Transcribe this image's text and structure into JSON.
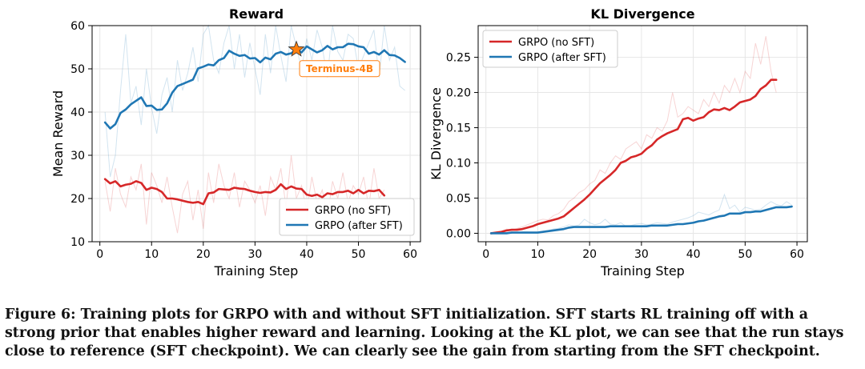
{
  "chart_data": [
    {
      "type": "line",
      "title": "Reward",
      "xlabel": "Training Step",
      "ylabel": "Mean Reward",
      "xlim": [
        -1.5,
        62
      ],
      "ylim": [
        10,
        60
      ],
      "xticks": [
        0,
        10,
        20,
        30,
        40,
        50,
        60
      ],
      "yticks": [
        10,
        20,
        30,
        40,
        50,
        60
      ],
      "grid": true,
      "legend_position": "lower-right",
      "colors": {
        "GRPO (no SFT)": "#d62728",
        "GRPO (after SFT)": "#1f77b4"
      },
      "series": [
        {
          "name": "GRPO (no SFT)",
          "x": [
            1,
            2,
            3,
            4,
            5,
            6,
            7,
            8,
            9,
            10,
            11,
            12,
            13,
            14,
            15,
            16,
            17,
            18,
            19,
            20,
            21,
            22,
            23,
            24,
            25,
            26,
            27,
            28,
            29,
            30,
            31,
            32,
            33,
            34,
            35,
            36,
            37,
            38,
            39,
            40,
            41,
            42,
            43,
            44,
            45,
            46,
            47,
            48,
            49,
            50,
            51,
            52,
            53,
            54,
            55
          ],
          "values": [
            24.5,
            23.5,
            24,
            22.8,
            23.2,
            23.4,
            24,
            23.6,
            22,
            22.5,
            22.2,
            21.5,
            20,
            20,
            19.8,
            19.5,
            19.2,
            19,
            19.2,
            18.7,
            21.2,
            21.4,
            22.2,
            22.1,
            22,
            22.5,
            22.3,
            22.2,
            21.8,
            21.5,
            21.3,
            21.5,
            21.4,
            22,
            23.3,
            22.2,
            22.8,
            22.3,
            22.2,
            20.9,
            20.6,
            20.9,
            20.3,
            21.2,
            21,
            21.5,
            21.5,
            21.8,
            21.2,
            22,
            21.2,
            21.8,
            21.7,
            22,
            20.7
          ],
          "raw": [
            24,
            17,
            27,
            21,
            18,
            25,
            22,
            28,
            14,
            26,
            23,
            19,
            25,
            18,
            12,
            21,
            24,
            15,
            22,
            13,
            26,
            19,
            28,
            23,
            20,
            26,
            18,
            24,
            22,
            19,
            23,
            16,
            25,
            22,
            27,
            18,
            30,
            20,
            23,
            17,
            25,
            19,
            22,
            16,
            24,
            20,
            26,
            19,
            23,
            21,
            25,
            18,
            27,
            20,
            22
          ]
        },
        {
          "name": "GRPO (after SFT)",
          "x": [
            1,
            2,
            3,
            4,
            5,
            6,
            7,
            8,
            9,
            10,
            11,
            12,
            13,
            14,
            15,
            16,
            17,
            18,
            19,
            20,
            21,
            22,
            23,
            24,
            25,
            26,
            27,
            28,
            29,
            30,
            31,
            32,
            33,
            34,
            35,
            36,
            37,
            38,
            39,
            40,
            41,
            42,
            43,
            44,
            45,
            46,
            47,
            48,
            49,
            50,
            51,
            52,
            53,
            54,
            55,
            56,
            57,
            58,
            59
          ],
          "values": [
            37.6,
            36.2,
            37.2,
            39.8,
            40.6,
            41.8,
            42.6,
            43.4,
            41.4,
            41.5,
            40.5,
            40.6,
            42,
            44.5,
            46,
            46.5,
            47,
            47.5,
            50.1,
            50.5,
            51,
            50.8,
            52,
            52.5,
            54.2,
            53.5,
            53,
            53.2,
            52.4,
            52.5,
            51.5,
            52.6,
            52.2,
            53.5,
            53.9,
            53.3,
            53.6,
            54.5,
            53.8,
            55.2,
            54.5,
            53.8,
            54.3,
            55.3,
            54.5,
            55,
            55,
            55.8,
            55.7,
            55.2,
            55,
            53.5,
            53.9,
            53.3,
            54.3,
            53.2,
            53.1,
            52.5,
            51.6
          ],
          "raw": [
            40,
            25,
            30,
            45,
            58,
            42,
            46,
            37,
            50,
            41,
            35,
            44,
            48,
            40,
            52,
            45,
            49,
            55,
            47,
            58,
            60,
            52,
            49,
            56,
            62,
            50,
            58,
            48,
            56,
            50,
            44,
            58,
            49,
            60,
            53,
            47,
            61,
            55,
            50,
            57,
            52,
            59,
            55,
            48,
            60,
            54,
            52,
            58,
            57,
            50,
            53,
            56,
            59,
            48,
            60,
            52,
            55,
            46,
            45
          ]
        }
      ],
      "annotation": {
        "label": "Terminus-4B",
        "x": 38,
        "y": 54.5,
        "marker": "star",
        "color": "#ff7f0e",
        "text_color": "#ff7f0e"
      }
    },
    {
      "type": "line",
      "title": "KL Divergence",
      "xlabel": "Training Step",
      "ylabel": "KL Divergence",
      "xlim": [
        -1.5,
        62
      ],
      "ylim": [
        -0.012,
        0.295
      ],
      "xticks": [
        0,
        10,
        20,
        30,
        40,
        50,
        60
      ],
      "yticks": [
        0.0,
        0.05,
        0.1,
        0.15,
        0.2,
        0.25
      ],
      "ytick_labels": [
        "0.00",
        "0.05",
        "0.10",
        "0.15",
        "0.20",
        "0.25"
      ],
      "grid": true,
      "legend_position": "upper-left",
      "colors": {
        "GRPO (no SFT)": "#d62728",
        "GRPO (after SFT)": "#1f77b4"
      },
      "series": [
        {
          "name": "GRPO (no SFT)",
          "x": [
            1,
            2,
            3,
            4,
            5,
            6,
            7,
            8,
            9,
            10,
            11,
            12,
            13,
            14,
            15,
            16,
            17,
            18,
            19,
            20,
            21,
            22,
            23,
            24,
            25,
            26,
            27,
            28,
            29,
            30,
            31,
            32,
            33,
            34,
            35,
            36,
            37,
            38,
            39,
            40,
            41,
            42,
            43,
            44,
            45,
            46,
            47,
            48,
            49,
            50,
            51,
            52,
            53,
            54,
            55,
            56
          ],
          "values": [
            0,
            0.001,
            0.002,
            0.004,
            0.005,
            0.005,
            0.006,
            0.008,
            0.01,
            0.013,
            0.015,
            0.017,
            0.019,
            0.021,
            0.024,
            0.03,
            0.036,
            0.042,
            0.048,
            0.055,
            0.063,
            0.071,
            0.077,
            0.083,
            0.09,
            0.1,
            0.103,
            0.108,
            0.11,
            0.113,
            0.12,
            0.125,
            0.133,
            0.138,
            0.142,
            0.145,
            0.148,
            0.162,
            0.164,
            0.16,
            0.163,
            0.165,
            0.172,
            0.176,
            0.175,
            0.178,
            0.175,
            0.18,
            0.186,
            0.188,
            0.19,
            0.195,
            0.205,
            0.21,
            0.218,
            0.218
          ],
          "raw": [
            0,
            0.002,
            0.003,
            0.006,
            0.004,
            0.007,
            0.009,
            0.012,
            0.015,
            0.018,
            0.02,
            0.019,
            0.025,
            0.028,
            0.034,
            0.045,
            0.05,
            0.058,
            0.062,
            0.07,
            0.075,
            0.09,
            0.085,
            0.1,
            0.11,
            0.105,
            0.12,
            0.125,
            0.13,
            0.12,
            0.14,
            0.135,
            0.15,
            0.145,
            0.16,
            0.2,
            0.165,
            0.17,
            0.18,
            0.175,
            0.17,
            0.19,
            0.18,
            0.2,
            0.185,
            0.21,
            0.2,
            0.22,
            0.2,
            0.23,
            0.22,
            0.27,
            0.24,
            0.28,
            0.23,
            0.2
          ]
        },
        {
          "name": "GRPO (after SFT)",
          "x": [
            1,
            2,
            3,
            4,
            5,
            6,
            7,
            8,
            9,
            10,
            11,
            12,
            13,
            14,
            15,
            16,
            17,
            18,
            19,
            20,
            21,
            22,
            23,
            24,
            25,
            26,
            27,
            28,
            29,
            30,
            31,
            32,
            33,
            34,
            35,
            36,
            37,
            38,
            39,
            40,
            41,
            42,
            43,
            44,
            45,
            46,
            47,
            48,
            49,
            50,
            51,
            52,
            53,
            54,
            55,
            56,
            57,
            58,
            59
          ],
          "values": [
            0,
            0,
            0,
            0,
            0.001,
            0.001,
            0.001,
            0.001,
            0.001,
            0.001,
            0.002,
            0.003,
            0.004,
            0.005,
            0.006,
            0.008,
            0.009,
            0.009,
            0.009,
            0.009,
            0.009,
            0.009,
            0.009,
            0.01,
            0.01,
            0.01,
            0.01,
            0.01,
            0.01,
            0.01,
            0.01,
            0.011,
            0.011,
            0.011,
            0.011,
            0.012,
            0.013,
            0.013,
            0.014,
            0.015,
            0.017,
            0.018,
            0.02,
            0.022,
            0.024,
            0.025,
            0.028,
            0.028,
            0.028,
            0.03,
            0.03,
            0.031,
            0.031,
            0.033,
            0.035,
            0.037,
            0.037,
            0.037,
            0.038
          ],
          "raw": [
            0,
            0,
            0,
            0.001,
            0.002,
            0.001,
            0.002,
            0.002,
            0.001,
            0.002,
            0.003,
            0.004,
            0.006,
            0.007,
            0.009,
            0.012,
            0.01,
            0.012,
            0.02,
            0.015,
            0.012,
            0.014,
            0.02,
            0.013,
            0.012,
            0.015,
            0.01,
            0.011,
            0.013,
            0.014,
            0.012,
            0.013,
            0.015,
            0.014,
            0.013,
            0.016,
            0.018,
            0.02,
            0.022,
            0.025,
            0.03,
            0.028,
            0.026,
            0.03,
            0.033,
            0.055,
            0.035,
            0.04,
            0.03,
            0.037,
            0.035,
            0.033,
            0.034,
            0.04,
            0.045,
            0.041,
            0.039,
            0.045,
            0.04
          ]
        }
      ]
    }
  ],
  "caption": "Figure 6: Training plots for GRPO with and without SFT initialization. SFT starts RL training off with a strong prior that enables higher reward and learning. Looking at the KL plot, we can see that the run stays close to reference (SFT checkpoint). We can clearly see the gain from starting from the SFT checkpoint."
}
